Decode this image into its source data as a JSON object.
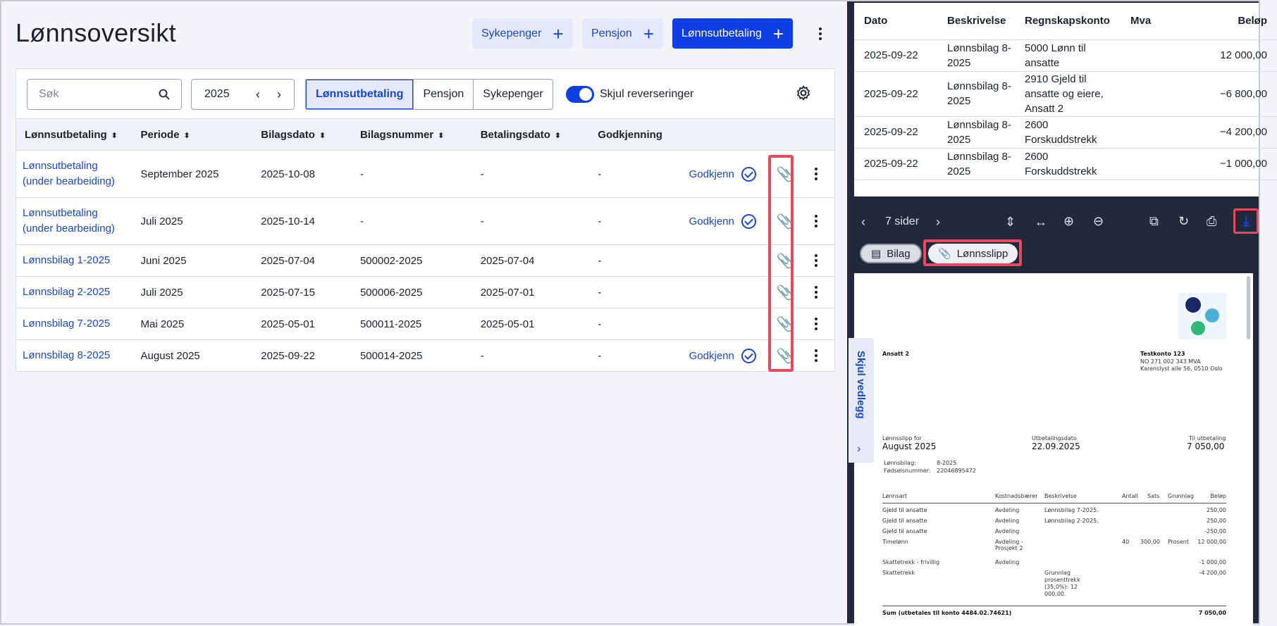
{
  "page": {
    "title": "Lønnsoversikt",
    "buttons": {
      "sick_pay": "Sykepenger",
      "pension": "Pensjon",
      "payroll": "Lønnsutbetaling"
    }
  },
  "filters": {
    "search_placeholder": "Søk",
    "year": "2025",
    "segments": [
      "Lønnsutbetaling",
      "Pensjon",
      "Sykepenger"
    ],
    "active_segment": "Lønnsutbetaling",
    "toggle_label": "Skjul reverseringer",
    "toggle_on": true
  },
  "table": {
    "headers": [
      "Lønnsutbetaling",
      "Periode",
      "Bilagsdato",
      "Bilagsnummer",
      "Betalingsdato",
      "Godkjenning"
    ],
    "rows": [
      {
        "name": "Lønnsutbetaling (under bearbeiding)",
        "period": "September 2025",
        "voucher_date": "2025-10-08",
        "voucher_no": "-",
        "payment_date": "-",
        "approval": "-",
        "action": "Godkjenn"
      },
      {
        "name": "Lønnsutbetaling (under bearbeiding)",
        "period": "Juli 2025",
        "voucher_date": "2025-10-14",
        "voucher_no": "-",
        "payment_date": "-",
        "approval": "-",
        "action": "Godkjenn"
      },
      {
        "name": "Lønnsbilag 1-2025",
        "period": "Juni 2025",
        "voucher_date": "2025-07-04",
        "voucher_no": "500002-2025",
        "payment_date": "2025-07-04",
        "approval": "-",
        "action": ""
      },
      {
        "name": "Lønnsbilag 2-2025",
        "period": "Juli 2025",
        "voucher_date": "2025-07-15",
        "voucher_no": "500006-2025",
        "payment_date": "2025-07-01",
        "approval": "-",
        "action": ""
      },
      {
        "name": "Lønnsbilag 7-2025",
        "period": "Mai 2025",
        "voucher_date": "2025-05-01",
        "voucher_no": "500011-2025",
        "payment_date": "2025-05-01",
        "approval": "-",
        "action": ""
      },
      {
        "name": "Lønnsbilag 8-2025",
        "period": "August 2025",
        "voucher_date": "2025-09-22",
        "voucher_no": "500014-2025",
        "payment_date": "-",
        "approval": "-",
        "action": "Godkjenn"
      }
    ]
  },
  "ledger": {
    "headers": [
      "Dato",
      "Beskrivelse",
      "Regnskapskonto",
      "Mva",
      "Beløp"
    ],
    "rows": [
      {
        "date": "2025-09-22",
        "desc": "Lønnsbilag 8-2025",
        "account": "5000 Lønn til ansatte",
        "vat": "",
        "amount": "12 000,00"
      },
      {
        "date": "2025-09-22",
        "desc": "Lønnsbilag 8-2025",
        "account": "2910 Gjeld til ansatte og eiere, Ansatt 2",
        "vat": "",
        "amount": "−6 800,00"
      },
      {
        "date": "2025-09-22",
        "desc": "Lønnsbilag 8-2025",
        "account": "2600 Forskuddstrekk",
        "vat": "",
        "amount": "−4 200,00"
      },
      {
        "date": "2025-09-22",
        "desc": "Lønnsbilag 8-2025",
        "account": "2600 Forskuddstrekk",
        "vat": "",
        "amount": "−1 000,00"
      }
    ]
  },
  "viewer": {
    "page_count": "7 sider",
    "tabs": [
      "Bilag",
      "Lønnsslipp"
    ],
    "active_tab": "Lønnsslipp",
    "side_tab_label": "Skjul vedlegg"
  },
  "payslip": {
    "employee": "Ansatt 2",
    "company": "Testkonto 123",
    "org": "NO 271 002 343 MVA",
    "address": "Karenslyst alle 56, 0510 Oslo",
    "slip_for_label": "Lønnsslipp for",
    "slip_for": "August 2025",
    "pay_date_label": "Utbetalingsdato",
    "pay_date": "22.09.2025",
    "to_pay_label": "Til utbetaling",
    "to_pay": "7 050,00",
    "voucher_label": "Lønnsbilag:",
    "voucher": "8-2025",
    "birth_label": "Fødselsnummer:",
    "birth": "22046895472",
    "cols": [
      "Lønnsart",
      "Kostnadsbærer",
      "Beskrivelse",
      "Antall",
      "Sats",
      "Grunnlag",
      "Beløp"
    ],
    "lines": [
      {
        "type": "Gjeld til ansatte",
        "cost": "Avdeling",
        "desc": "Lønnsbilag 7-2025.",
        "qty": "",
        "rate": "",
        "base": "",
        "amount": "250,00"
      },
      {
        "type": "Gjeld til ansatte",
        "cost": "Avdeling",
        "desc": "Lønnsbilag 2-2025.",
        "qty": "",
        "rate": "",
        "base": "",
        "amount": "250,00"
      },
      {
        "type": "Gjeld til ansatte",
        "cost": "Avdeling",
        "desc": "",
        "qty": "",
        "rate": "",
        "base": "",
        "amount": "-250,00"
      },
      {
        "type": "Timelønn",
        "cost": "Avdeling - Prosjekt 2",
        "desc": "",
        "qty": "40",
        "rate": "300,00",
        "base": "Prosent",
        "amount": "12 000,00"
      },
      {
        "type": "Skattetrekk - frivillig",
        "cost": "Avdeling",
        "desc": "",
        "qty": "",
        "rate": "",
        "base": "",
        "amount": "-1 000,00"
      },
      {
        "type": "Skattetrekk",
        "cost": "",
        "desc": "Grunnlag prosenttrekk (35,0%): 12 000,00.",
        "qty": "",
        "rate": "",
        "base": "",
        "amount": "-4 200,00"
      }
    ],
    "sum_label": "Sum (utbetales til konto  4484.02.74621)",
    "sum": "7 050,00"
  }
}
